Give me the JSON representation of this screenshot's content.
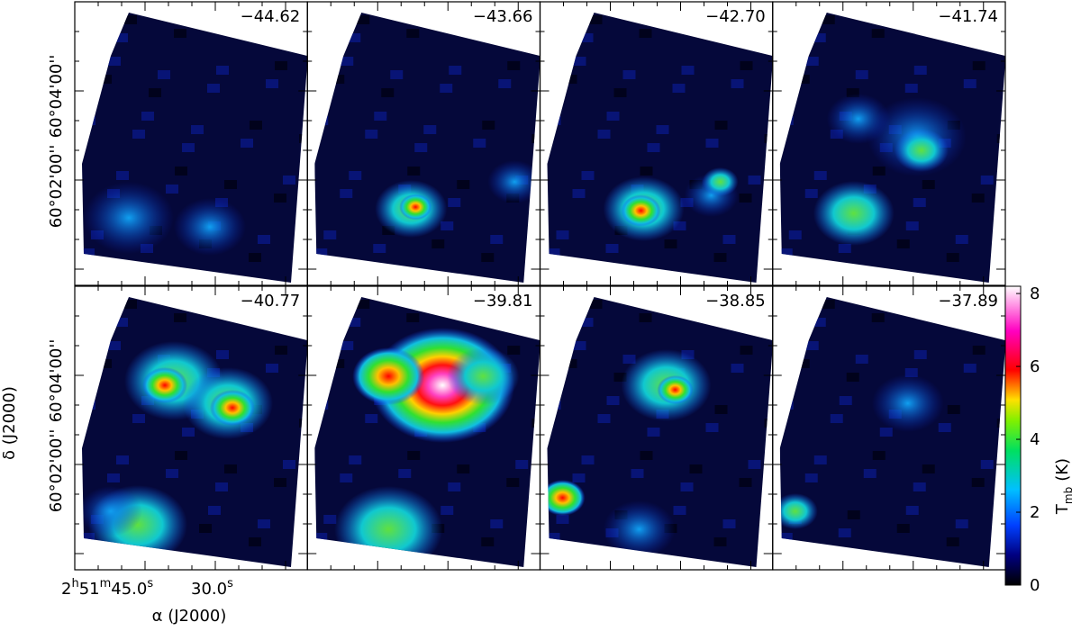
{
  "chart_data": {
    "type": "channel-maps",
    "panels": [
      "−44.62",
      "−43.66",
      "−42.70",
      "−41.74",
      "−40.77",
      "−39.81",
      "−38.85",
      "−37.89"
    ],
    "y_axis_label": "δ (J2000)",
    "x_axis_label": "α (J2000)",
    "y_tick_labels": [
      "60°04'00''",
      "60°02'00''"
    ],
    "x_tick_labels": [
      [
        "2",
        "h",
        "51",
        "m",
        "45.0",
        "s"
      ],
      [
        "30.0",
        "s"
      ]
    ],
    "colorbar": {
      "label": "T",
      "label_sub": "mb",
      "label_unit": "(K)",
      "ylim": [
        0,
        8.2
      ],
      "yticks": [
        0,
        2,
        4,
        6,
        8
      ]
    }
  }
}
